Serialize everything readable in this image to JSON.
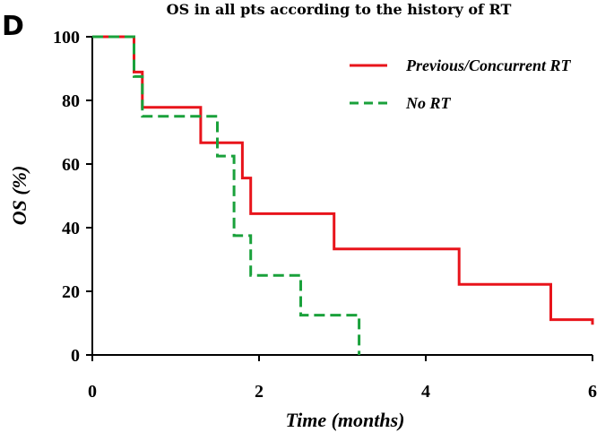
{
  "panel_letter": "D",
  "chart_data": {
    "type": "line",
    "subtype": "kaplan-meier step",
    "title": "OS in all pts according to the history of RT",
    "xlabel": "Time (months)",
    "ylabel": "OS (%)",
    "xlim": [
      0,
      6
    ],
    "ylim": [
      0,
      100
    ],
    "xticks": [
      "0",
      "2",
      "4",
      "6"
    ],
    "yticks": [
      "0",
      "20",
      "40",
      "60",
      "80",
      "100"
    ],
    "grid": false,
    "legend_position": "top-right",
    "series": [
      {
        "name": "Previous/Concurrent RT",
        "color": "#e8141b",
        "dash": "solid",
        "steps": [
          [
            0,
            100
          ],
          [
            0.5,
            88.9
          ],
          [
            0.6,
            77.8
          ],
          [
            1.3,
            66.7
          ],
          [
            1.8,
            55.6
          ],
          [
            1.9,
            44.4
          ],
          [
            2.9,
            33.3
          ],
          [
            4.4,
            22.2
          ],
          [
            5.5,
            11.1
          ],
          [
            6.0,
            9.5
          ]
        ]
      },
      {
        "name": "No  RT",
        "color": "#1aa13b",
        "dash": "dashed",
        "steps": [
          [
            0,
            100
          ],
          [
            0.5,
            87.5
          ],
          [
            0.6,
            75
          ],
          [
            1.5,
            62.5
          ],
          [
            1.7,
            37.5
          ],
          [
            1.9,
            25
          ],
          [
            2.5,
            12.5
          ],
          [
            3.2,
            0
          ]
        ]
      }
    ]
  }
}
